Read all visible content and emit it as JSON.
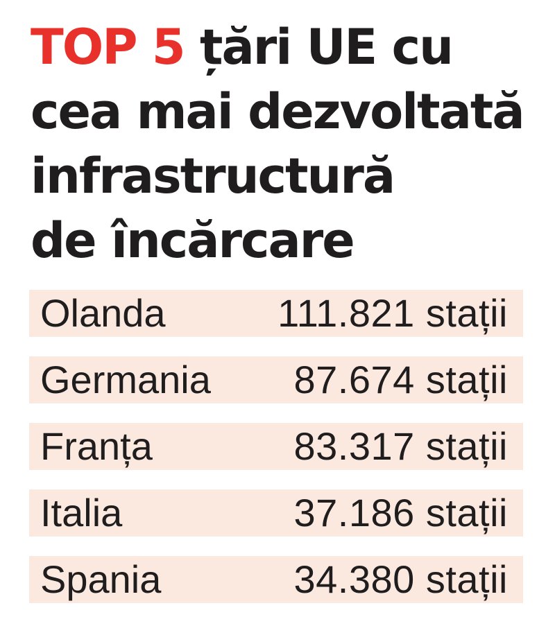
{
  "title": {
    "highlight": "TOP 5",
    "line1_rest": " țări UE cu",
    "line2": "cea mai dezvoltată",
    "line3": "infrastructură",
    "line4": "de încărcare"
  },
  "colors": {
    "accent": "#e8312a",
    "text": "#1f1d1e",
    "row_background": "#fbe9df"
  },
  "chart_data": {
    "type": "table",
    "title": "TOP 5 țări UE cu cea mai dezvoltată infrastructură de încărcare",
    "unit": "stații",
    "rows": [
      {
        "country": "Olanda",
        "value": 111821,
        "display": "111.821 stații"
      },
      {
        "country": "Germania",
        "value": 87674,
        "display": "87.674 stații"
      },
      {
        "country": "Franța",
        "value": 83317,
        "display": "83.317 stații"
      },
      {
        "country": "Italia",
        "value": 37186,
        "display": "37.186 stații"
      },
      {
        "country": "Spania",
        "value": 34380,
        "display": "34.380 stații"
      }
    ]
  }
}
